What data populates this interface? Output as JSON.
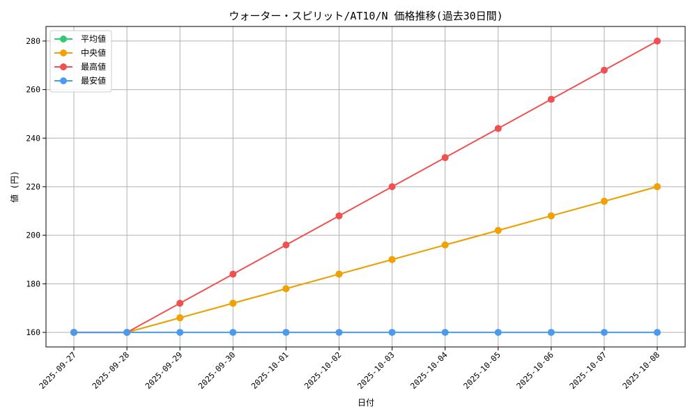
{
  "chart_data": {
    "type": "line",
    "title": "ウォーター・スピリット/AT10/N 価格推移(過去30日間)",
    "xlabel": "日付",
    "ylabel": "値 (円)",
    "categories": [
      "2025-09-27",
      "2025-09-28",
      "2025-09-29",
      "2025-09-30",
      "2025-10-01",
      "2025-10-02",
      "2025-10-03",
      "2025-10-04",
      "2025-10-05",
      "2025-10-06",
      "2025-10-07",
      "2025-10-08"
    ],
    "ylim": [
      154,
      286
    ],
    "yticks": [
      160,
      180,
      200,
      220,
      240,
      260,
      280
    ],
    "grid": true,
    "legend_position": "top-left",
    "series": [
      {
        "name": "平均値",
        "color": "#2ecc71",
        "values": [
          160,
          160,
          166,
          172,
          178,
          184,
          190,
          196,
          202,
          208,
          214,
          220
        ]
      },
      {
        "name": "中央値",
        "color": "#f5a000",
        "values": [
          160,
          160,
          166,
          172,
          178,
          184,
          190,
          196,
          202,
          208,
          214,
          220
        ]
      },
      {
        "name": "最高値",
        "color": "#f05050",
        "values": [
          160,
          160,
          172,
          184,
          196,
          208,
          220,
          232,
          244,
          256,
          268,
          280
        ]
      },
      {
        "name": "最安値",
        "color": "#4a9af0",
        "values": [
          160,
          160,
          160,
          160,
          160,
          160,
          160,
          160,
          160,
          160,
          160,
          160
        ]
      }
    ]
  }
}
